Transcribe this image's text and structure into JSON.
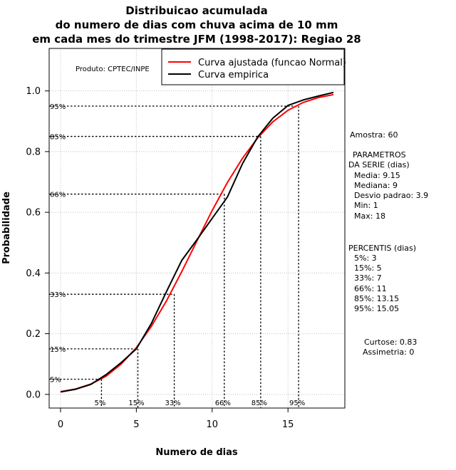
{
  "chart_data": {
    "type": "line",
    "title_lines": [
      "Distribuicao acumulada",
      "do numero de dias com chuva acima de 10 mm",
      "em cada mes do trimestre JFM (1998-2017): Regiao 28"
    ],
    "xlabel": "Numero de dias",
    "ylabel": "Probabilidade",
    "xlim": [
      -0.75,
      18.75
    ],
    "ylim": [
      -0.045,
      1.14
    ],
    "x_ticks": [
      0,
      5,
      10,
      15
    ],
    "y_ticks": [
      0.0,
      0.2,
      0.4,
      0.6,
      0.8,
      1.0
    ],
    "y_tick_labels": [
      "0.0",
      "0.2",
      "0.4",
      "0.6",
      "0.8",
      "1.0"
    ],
    "grid": true,
    "product_label": "Produto: CPTEC/INPE",
    "legend_position": "top-right",
    "series": [
      {
        "name": "Curva ajustada (funcao Normal)",
        "color": "#ff0000",
        "x": [
          0,
          1,
          2,
          3,
          4,
          5,
          6,
          7,
          8,
          9,
          10,
          11,
          12,
          13,
          14,
          15,
          16,
          17,
          18
        ],
        "y": [
          0.009,
          0.018,
          0.034,
          0.06,
          0.1,
          0.154,
          0.225,
          0.309,
          0.405,
          0.506,
          0.606,
          0.698,
          0.778,
          0.845,
          0.898,
          0.936,
          0.962,
          0.978,
          0.988
        ]
      },
      {
        "name": "Curva empirica",
        "color": "#000000",
        "x": [
          0,
          1,
          2,
          3,
          4,
          5,
          6,
          7,
          8,
          9,
          10,
          11,
          12,
          13,
          14,
          15,
          16,
          17,
          18
        ],
        "y": [
          0.008,
          0.017,
          0.033,
          0.065,
          0.105,
          0.15,
          0.235,
          0.34,
          0.442,
          0.51,
          0.58,
          0.65,
          0.76,
          0.848,
          0.91,
          0.952,
          0.97,
          0.983,
          0.995
        ]
      }
    ],
    "percentile_guides": [
      {
        "label": "5%",
        "x": 2.7,
        "y": 0.05
      },
      {
        "label": "15%",
        "x": 5.1,
        "y": 0.15
      },
      {
        "label": "33%",
        "x": 7.5,
        "y": 0.33
      },
      {
        "label": "66%",
        "x": 10.8,
        "y": 0.66
      },
      {
        "label": "85%",
        "x": 13.2,
        "y": 0.85
      },
      {
        "label": "95%",
        "x": 15.7,
        "y": 0.95
      }
    ]
  },
  "side_panel": {
    "amostra": "Amostra: 60",
    "param_title_1": "PARAMETROS",
    "param_title_2": "DA SERIE (dias)",
    "params": [
      "Media: 9.15",
      "Mediana: 9",
      "Desvio padrao: 3.9",
      "Min: 1",
      "Max: 18"
    ],
    "pct_title": "PERCENTIS (dias)",
    "percentis": [
      "5%: 3",
      "15%: 5",
      "33%: 7",
      "66%: 11",
      "85%: 13.15",
      "95%: 15.05"
    ],
    "curtose": "Curtose: 0.83",
    "assimetria": "Assimetria: 0"
  }
}
